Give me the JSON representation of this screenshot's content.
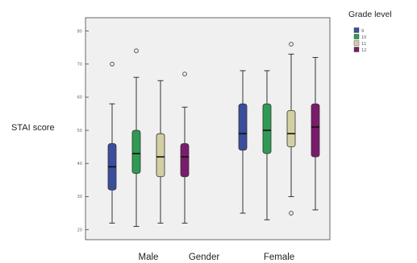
{
  "chart_data": {
    "type": "boxplot",
    "title": "",
    "xlabel": "Gender",
    "ylabel": "STAI score",
    "ylim": [
      17,
      84
    ],
    "yticks": [
      20,
      30,
      40,
      50,
      60,
      70,
      80
    ],
    "grid": false,
    "legend": {
      "title": "Grade level",
      "placement": "right",
      "entries": [
        {
          "label": "9",
          "color": "#3a4e9c"
        },
        {
          "label": "10",
          "color": "#2f9a54"
        },
        {
          "label": "11",
          "color": "#d2cfa3"
        },
        {
          "label": "12",
          "color": "#7a1c6b"
        }
      ]
    },
    "categories": [
      "Male",
      "Female"
    ],
    "series": [
      {
        "name": "9",
        "color": "#3a4e9c",
        "boxes": [
          {
            "category": "Male",
            "min": 22,
            "q1": 32,
            "median": 39,
            "q3": 46,
            "max": 58,
            "outliers": [
              70
            ]
          },
          {
            "category": "Female",
            "min": 25,
            "q1": 44,
            "median": 49,
            "q3": 58,
            "max": 68,
            "outliers": []
          }
        ]
      },
      {
        "name": "10",
        "color": "#2f9a54",
        "boxes": [
          {
            "category": "Male",
            "min": 21,
            "q1": 37,
            "median": 43,
            "q3": 50,
            "max": 66,
            "outliers": [
              74
            ]
          },
          {
            "category": "Female",
            "min": 23,
            "q1": 43,
            "median": 50,
            "q3": 58,
            "max": 68,
            "outliers": []
          }
        ]
      },
      {
        "name": "11",
        "color": "#d2cfa3",
        "boxes": [
          {
            "category": "Male",
            "min": 22,
            "q1": 36,
            "median": 42,
            "q3": 49,
            "max": 65,
            "outliers": []
          },
          {
            "category": "Female",
            "min": 30,
            "q1": 45,
            "median": 49,
            "q3": 56,
            "max": 73,
            "outliers": [
              25,
              76
            ]
          }
        ]
      },
      {
        "name": "12",
        "color": "#7a1c6b",
        "boxes": [
          {
            "category": "Male",
            "min": 22,
            "q1": 36,
            "median": 42,
            "q3": 46,
            "max": 57,
            "outliers": [
              67
            ]
          },
          {
            "category": "Female",
            "min": 26,
            "q1": 42,
            "median": 51,
            "q3": 58,
            "max": 72,
            "outliers": []
          }
        ]
      }
    ]
  }
}
